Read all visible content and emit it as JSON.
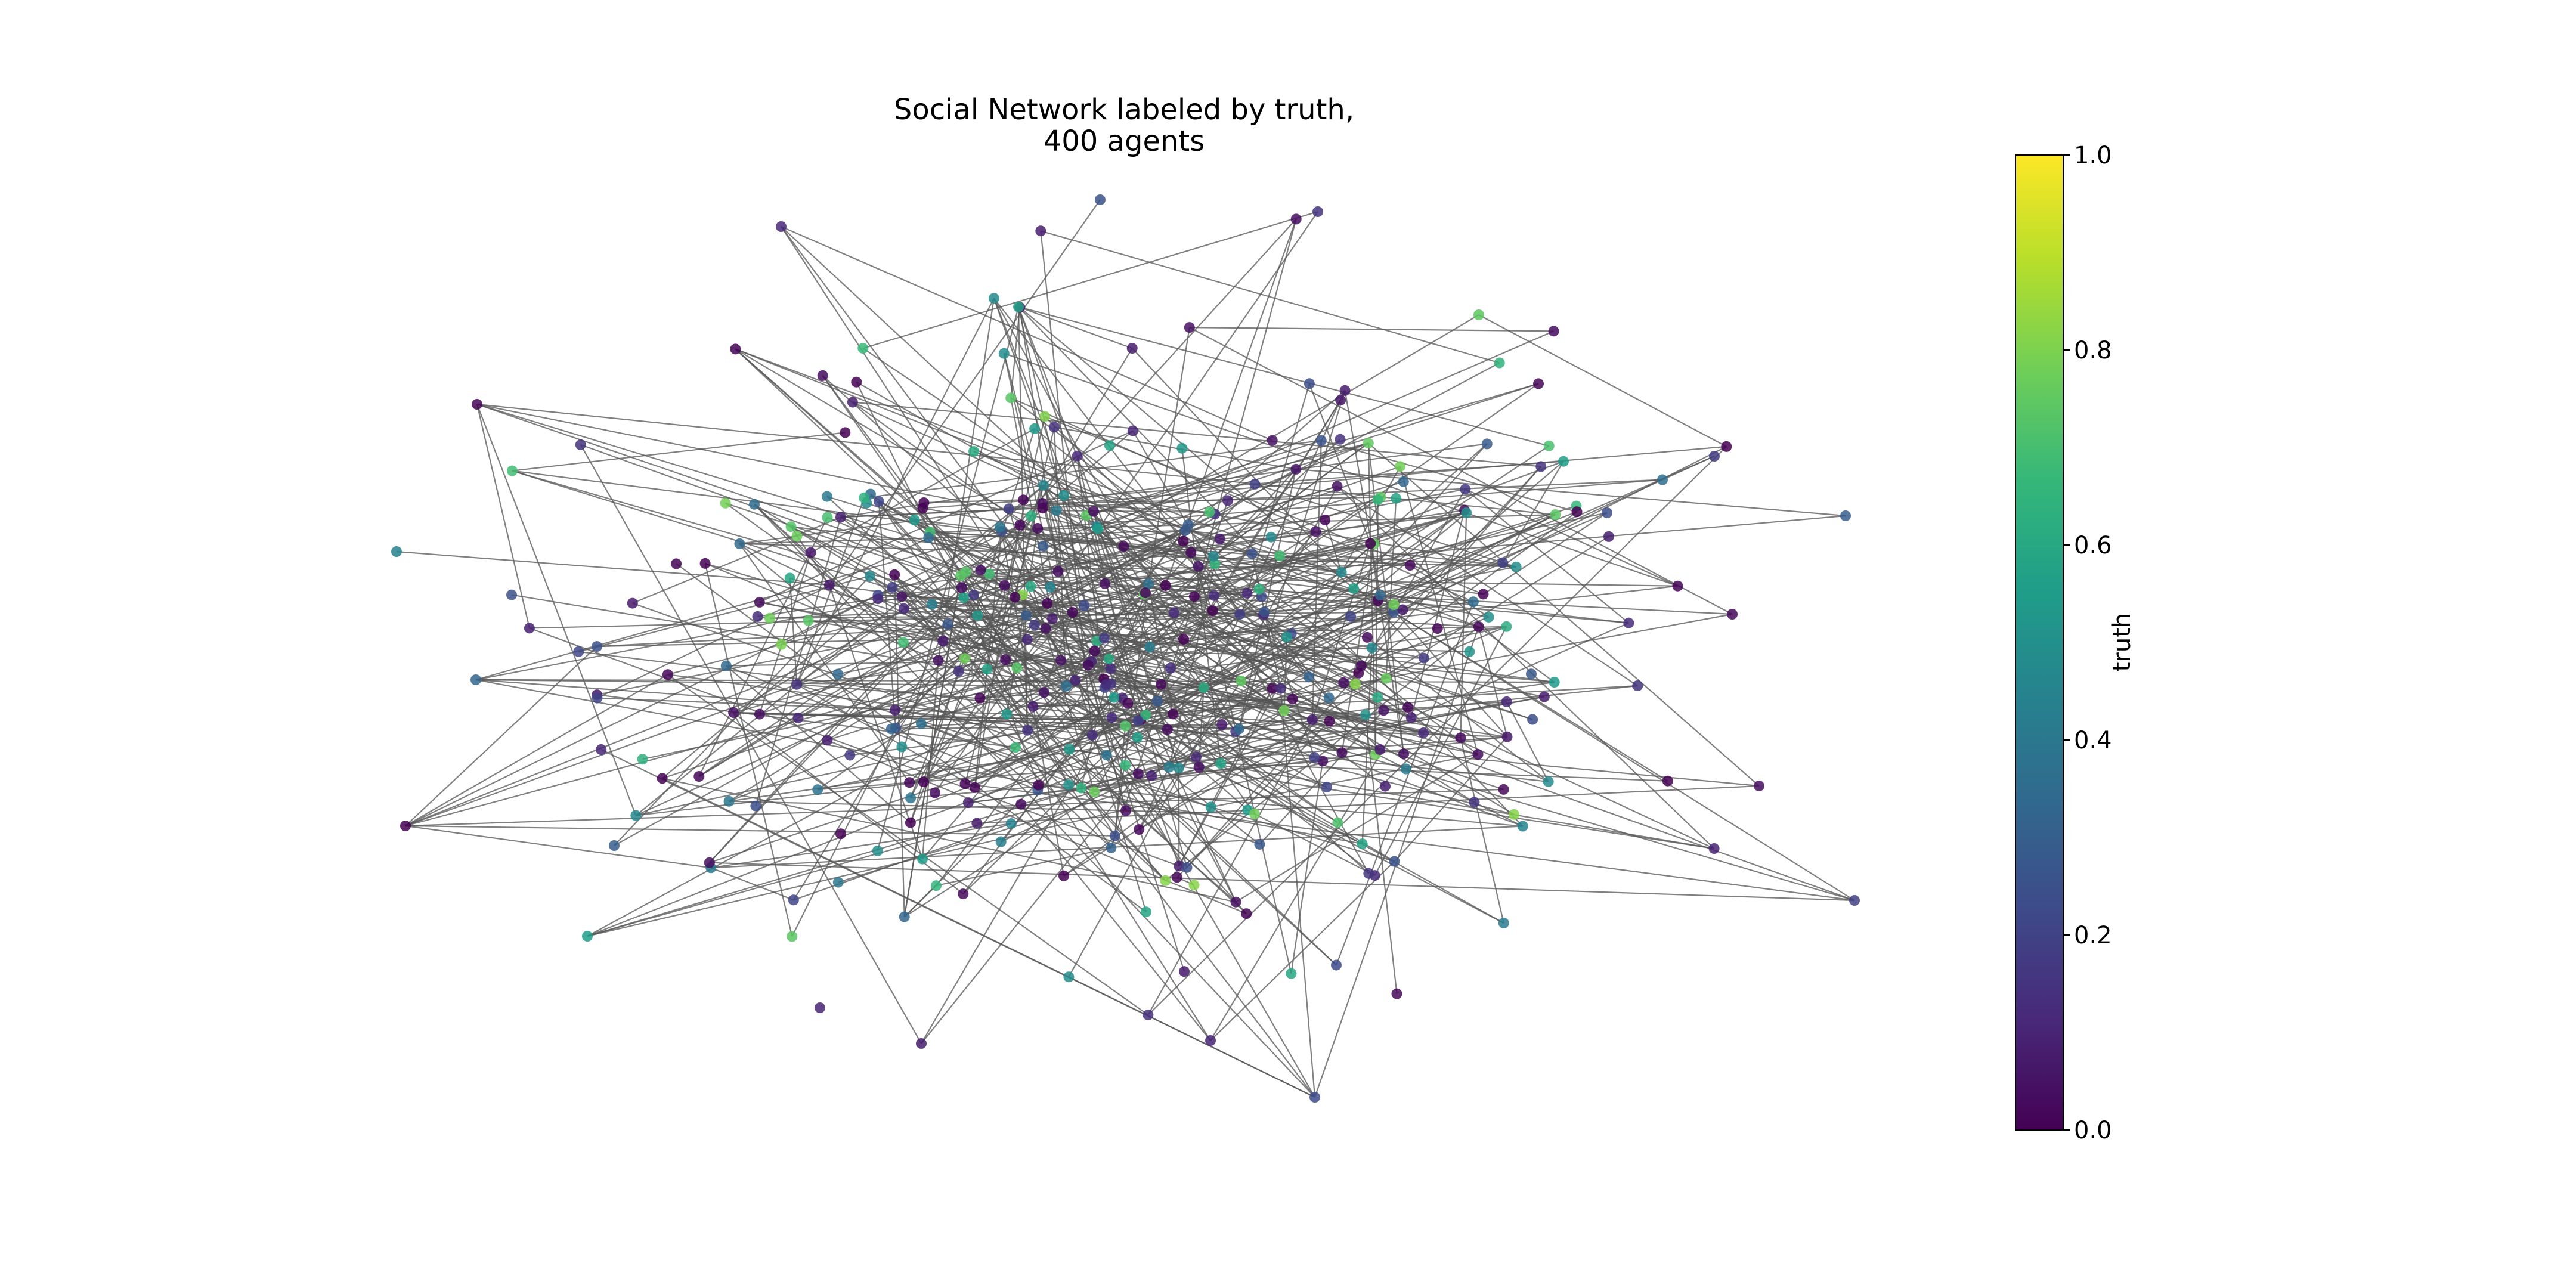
{
  "chart_data": {
    "type": "network",
    "title_lines": [
      "Social Network labeled by truth,",
      "400 agents"
    ],
    "node_count": 400,
    "colorbar": {
      "label": "truth",
      "colormap": "viridis",
      "range": [
        0.0,
        1.0
      ],
      "ticks": [
        {
          "value": 0.0,
          "label": "0.0"
        },
        {
          "value": 0.2,
          "label": "0.2"
        },
        {
          "value": 0.4,
          "label": "0.4"
        },
        {
          "value": 0.6,
          "label": "0.6"
        },
        {
          "value": 0.8,
          "label": "0.8"
        },
        {
          "value": 1.0,
          "label": "1.0"
        }
      ]
    },
    "colors": {
      "edge": "#555555",
      "viridis_stops": [
        "#440154",
        "#482878",
        "#3e4989",
        "#31688e",
        "#26828e",
        "#1f9e89",
        "#35b779",
        "#6ece58",
        "#b5de2b",
        "#fde725"
      ]
    },
    "axes": "off"
  }
}
